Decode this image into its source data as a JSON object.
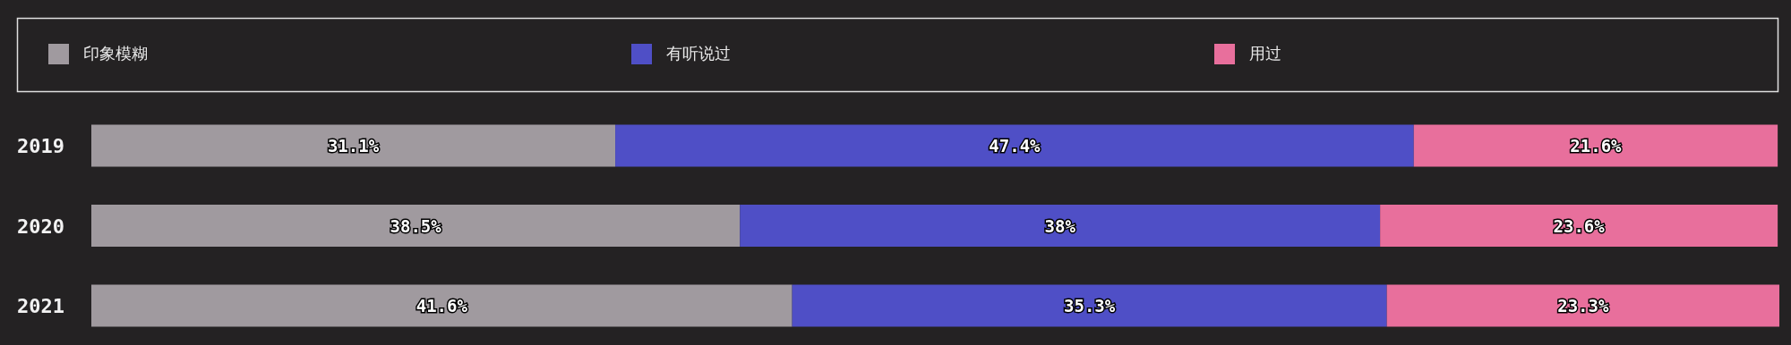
{
  "chart_data": {
    "type": "bar",
    "orientation": "horizontal",
    "stacked": true,
    "legend": "top",
    "categories": [
      "2019",
      "2020",
      "2021"
    ],
    "series": [
      {
        "name": "印象模糊",
        "color": "#a09a9f",
        "values": [
          31.1,
          38.5,
          41.6
        ],
        "value_labels": [
          "31.1%",
          "38.5%",
          "41.6%"
        ]
      },
      {
        "name": "有听说过",
        "color": "#4f4fc6",
        "values": [
          47.4,
          38,
          35.3
        ],
        "value_labels": [
          "47.4%",
          "38%",
          "35.3%"
        ]
      },
      {
        "name": "用过",
        "color": "#e86f9c",
        "values": [
          21.6,
          23.6,
          23.3
        ],
        "value_labels": [
          "21.6%",
          "23.6%",
          "23.3%"
        ]
      }
    ]
  }
}
